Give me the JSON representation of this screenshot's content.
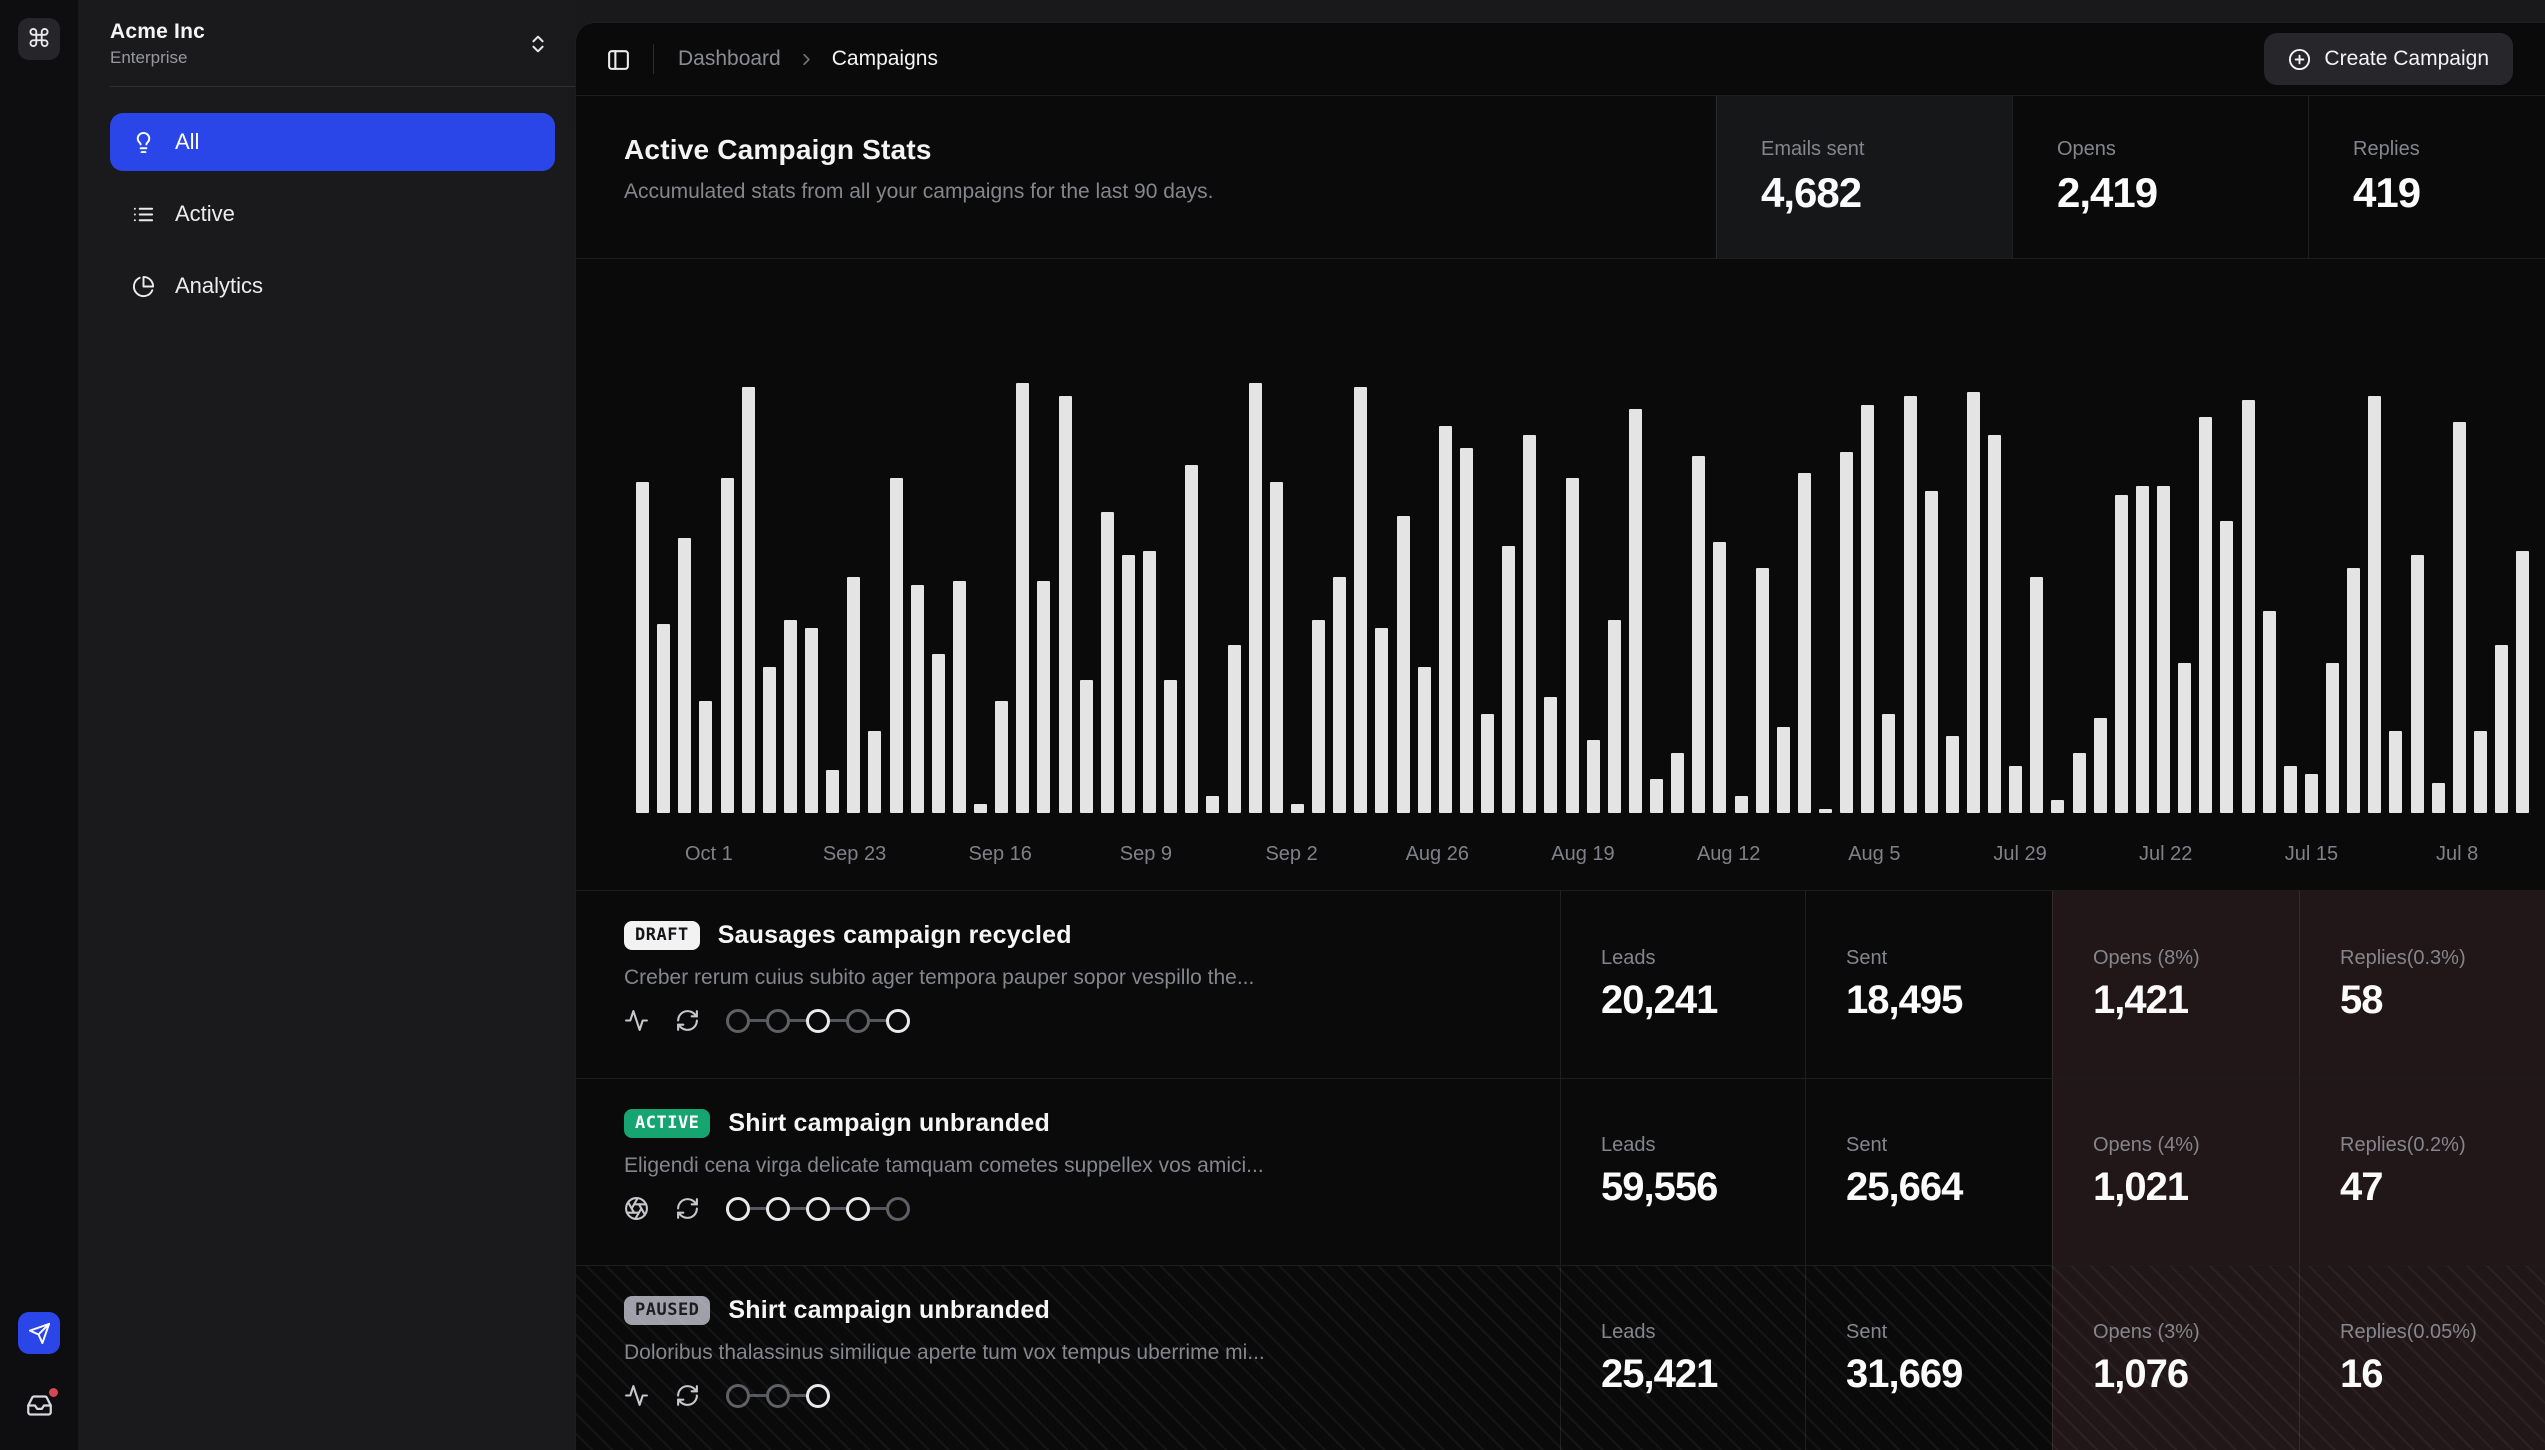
{
  "colors": {
    "accent_blue": "#2a46e8",
    "badge_green": "#16a571",
    "badge_gray": "#9fa0aa",
    "bar_fill": "#e4e4e5",
    "warm_cell_bg": "#211618",
    "notification_red": "#d4484f"
  },
  "sidebar": {
    "workspace": {
      "name": "Acme Inc",
      "plan": "Enterprise"
    },
    "items": [
      {
        "label": "All",
        "icon": "lightbulb-icon",
        "active": true
      },
      {
        "label": "Active",
        "icon": "list-icon",
        "active": false
      },
      {
        "label": "Analytics",
        "icon": "pie-chart-icon",
        "active": false
      }
    ]
  },
  "topbar": {
    "breadcrumb": {
      "parent": "Dashboard",
      "current": "Campaigns"
    },
    "create_button_label": "Create Campaign"
  },
  "stats_overview": {
    "title": "Active Campaign Stats",
    "subtitle": "Accumulated stats from all your campaigns for the last 90 days.",
    "stats": [
      {
        "label": "Emails sent",
        "value": "4,682"
      },
      {
        "label": "Opens",
        "value": "2,419"
      },
      {
        "label": "Replies",
        "value": "419"
      }
    ]
  },
  "chart_data": {
    "type": "bar",
    "description": "Daily campaign email volume for the last 90 days, newest week on the left",
    "x_labels": [
      "Oct 1",
      "Sep 23",
      "Sep 16",
      "Sep 9",
      "Sep 2",
      "Aug 26",
      "Aug 19",
      "Aug 12",
      "Aug 5",
      "Jul 29",
      "Jul 22",
      "Jul 15",
      "Jul 8"
    ],
    "ylim": [
      0,
      100
    ],
    "grid": false,
    "legend": false,
    "values": [
      77,
      44,
      64,
      26,
      78,
      99,
      34,
      45,
      43,
      10,
      55,
      19,
      78,
      53,
      37,
      54,
      2,
      26,
      100,
      54,
      97,
      31,
      70,
      60,
      61,
      31,
      81,
      4,
      39,
      100,
      77,
      2,
      45,
      55,
      99,
      43,
      69,
      34,
      90,
      85,
      23,
      62,
      88,
      27,
      78,
      17,
      45,
      94,
      8,
      14,
      83,
      63,
      4,
      57,
      20,
      79,
      1,
      84,
      95,
      23,
      97,
      75,
      18,
      98,
      88,
      11,
      55,
      3,
      14,
      22,
      74,
      76,
      76,
      35,
      92,
      68,
      96,
      47,
      11,
      9,
      35,
      57,
      97,
      19,
      60,
      7,
      91,
      19,
      39,
      61
    ]
  },
  "campaigns": [
    {
      "badge": "DRAFT",
      "badge_style": "draft",
      "title": "Sausages campaign recycled",
      "description": "Creber rerum cuius subito ager tempora pauper sopor vespillo the...",
      "lead_icon": "activity-icon",
      "steps": [
        "dim",
        "dim",
        "bright",
        "dim",
        "bright"
      ],
      "stats": [
        {
          "label": "Leads",
          "value": "20,241",
          "warm": false
        },
        {
          "label": "Sent",
          "value": "18,495",
          "warm": false
        },
        {
          "label": "Opens (8%)",
          "value": "1,421",
          "warm": true
        },
        {
          "label": "Replies(0.3%)",
          "value": "58",
          "warm": true
        }
      ]
    },
    {
      "badge": "ACTIVE",
      "badge_style": "active",
      "title": "Shirt campaign unbranded",
      "description": "Eligendi cena virga delicate tamquam cometes suppellex vos amici...",
      "lead_icon": "aperture-icon",
      "steps": [
        "bright",
        "bright",
        "bright",
        "bright",
        "dim"
      ],
      "stats": [
        {
          "label": "Leads",
          "value": "59,556",
          "warm": false
        },
        {
          "label": "Sent",
          "value": "25,664",
          "warm": false
        },
        {
          "label": "Opens (4%)",
          "value": "1,021",
          "warm": true
        },
        {
          "label": "Replies(0.2%)",
          "value": "47",
          "warm": true
        }
      ]
    },
    {
      "badge": "PAUSED",
      "badge_style": "paused",
      "title": "Shirt campaign unbranded",
      "description": "Doloribus thalassinus similique aperte tum vox tempus uberrime mi...",
      "lead_icon": "activity-icon",
      "steps": [
        "dim",
        "dim",
        "bright"
      ],
      "stats": [
        {
          "label": "Leads",
          "value": "25,421",
          "warm": false
        },
        {
          "label": "Sent",
          "value": "31,669",
          "warm": false
        },
        {
          "label": "Opens (3%)",
          "value": "1,076",
          "warm": true
        },
        {
          "label": "Replies(0.05%)",
          "value": "16",
          "warm": true
        }
      ]
    }
  ],
  "rail": {
    "command_glyph": "⌘"
  }
}
